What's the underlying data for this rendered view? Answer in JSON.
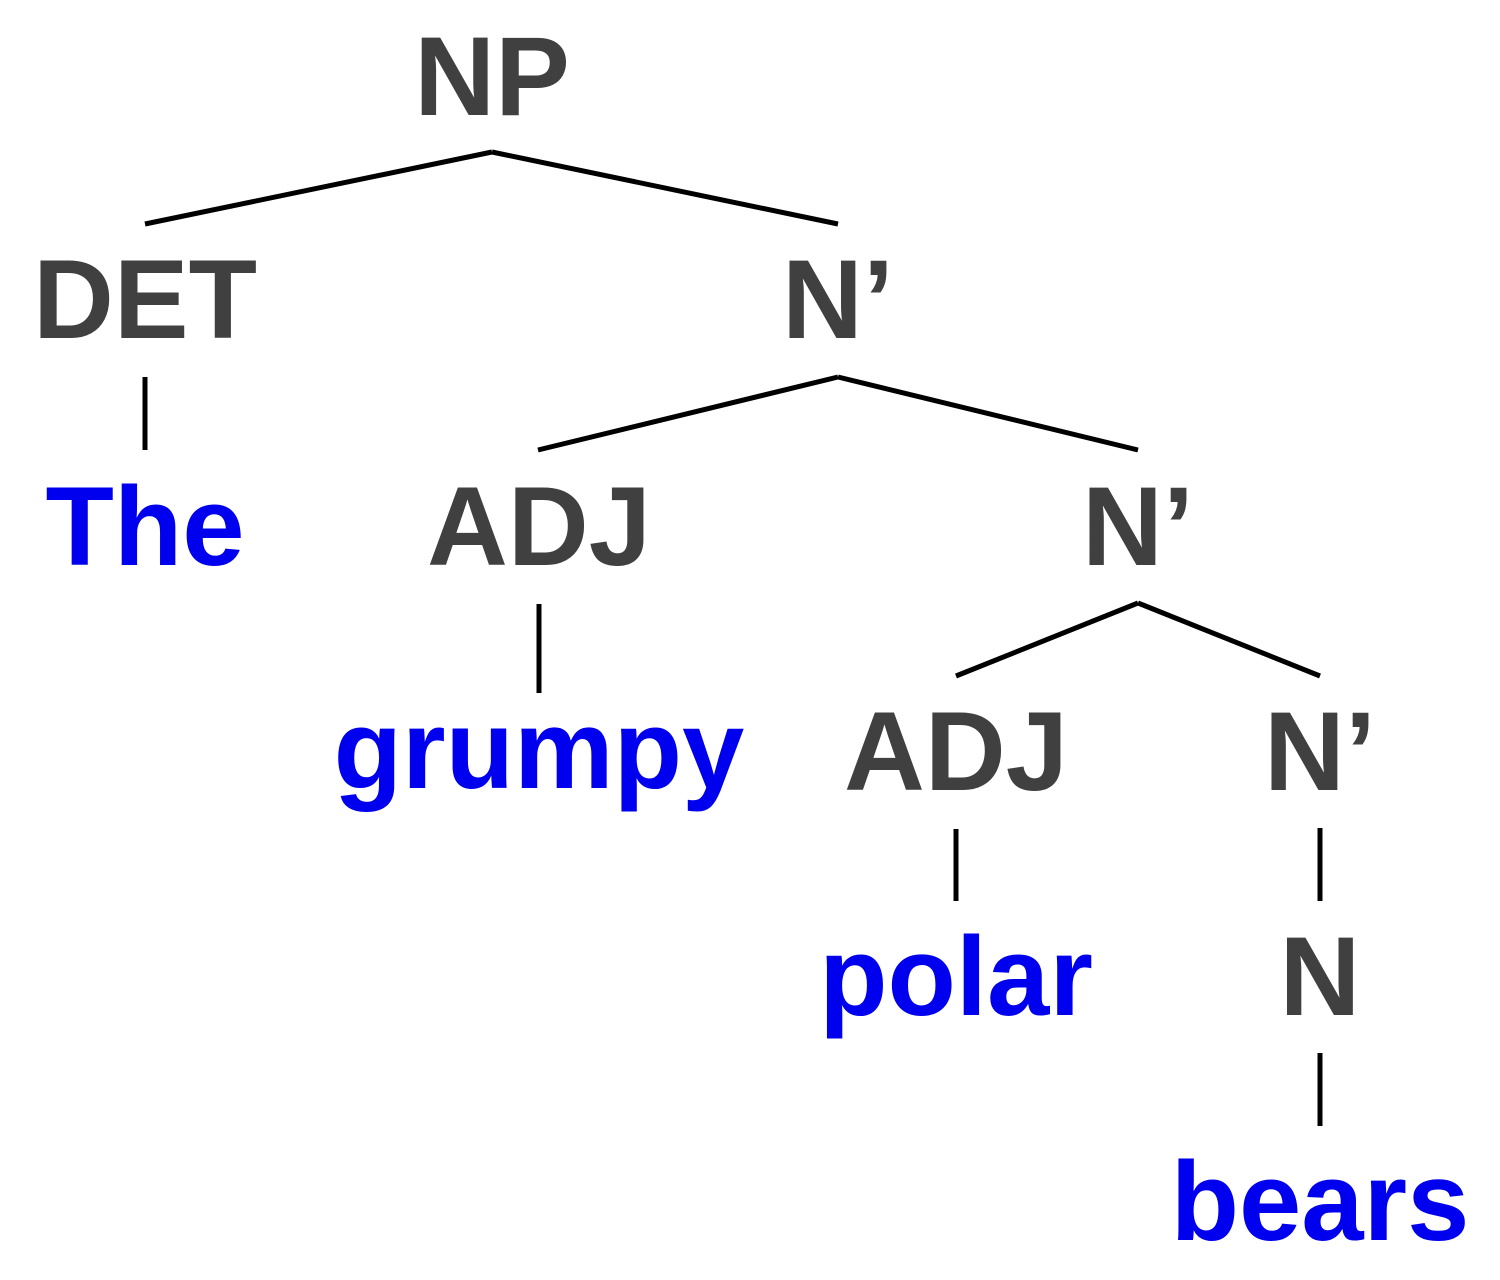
{
  "colors": {
    "category": "#404040",
    "word": "#0000ee",
    "edge": "#000000"
  },
  "nodes": [
    {
      "id": "np",
      "label": "NP",
      "kind": "category"
    },
    {
      "id": "det",
      "label": "DET",
      "kind": "category"
    },
    {
      "id": "nbar1",
      "label": "N’",
      "kind": "category"
    },
    {
      "id": "the",
      "label": "The",
      "kind": "word"
    },
    {
      "id": "adj1",
      "label": "ADJ",
      "kind": "category"
    },
    {
      "id": "nbar2",
      "label": "N’",
      "kind": "category"
    },
    {
      "id": "grumpy",
      "label": "grumpy",
      "kind": "word"
    },
    {
      "id": "adj2",
      "label": "ADJ",
      "kind": "category"
    },
    {
      "id": "nbar3",
      "label": "N’",
      "kind": "category"
    },
    {
      "id": "polar",
      "label": "polar",
      "kind": "word"
    },
    {
      "id": "n",
      "label": "N",
      "kind": "category"
    },
    {
      "id": "bears",
      "label": "bears",
      "kind": "word"
    }
  ],
  "edges": [
    [
      "np",
      "det"
    ],
    [
      "np",
      "nbar1"
    ],
    [
      "det",
      "the"
    ],
    [
      "nbar1",
      "adj1"
    ],
    [
      "nbar1",
      "nbar2"
    ],
    [
      "adj1",
      "grumpy"
    ],
    [
      "nbar2",
      "adj2"
    ],
    [
      "nbar2",
      "nbar3"
    ],
    [
      "adj2",
      "polar"
    ],
    [
      "nbar3",
      "n"
    ],
    [
      "n",
      "bears"
    ]
  ]
}
